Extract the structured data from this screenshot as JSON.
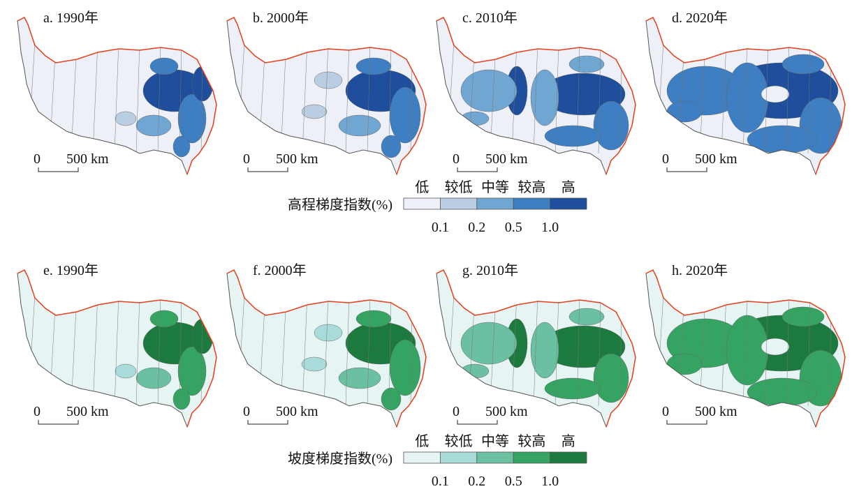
{
  "panels": [
    {
      "label": "a. 1990年"
    },
    {
      "label": "b. 2000年"
    },
    {
      "label": "c. 2010年"
    },
    {
      "label": "d. 2020年"
    },
    {
      "label": "e. 1990年"
    },
    {
      "label": "f. 2000年"
    },
    {
      "label": "g. 2010年"
    },
    {
      "label": "h. 2020年"
    }
  ],
  "scale_bar": {
    "zero": "0",
    "length": "500 km"
  },
  "legends": [
    {
      "title": "高程梯度指数(%)",
      "classes": [
        "低",
        "较低",
        "中等",
        "较高",
        "高"
      ],
      "colors": [
        "#eef0f8",
        "#b9cde3",
        "#6fa6d2",
        "#3d7fc2",
        "#1f4e9c"
      ],
      "breaks": [
        "0.1",
        "0.2",
        "0.5",
        "1.0"
      ]
    },
    {
      "title": "坡度梯度指数(%)",
      "classes": [
        "低",
        "较低",
        "中等",
        "较高",
        "高"
      ],
      "colors": [
        "#e6f4f4",
        "#a9dbdb",
        "#6cc0a2",
        "#35a462",
        "#1d7a3e"
      ],
      "breaks": [
        "0.1",
        "0.2",
        "0.5",
        "1.0"
      ]
    }
  ]
}
